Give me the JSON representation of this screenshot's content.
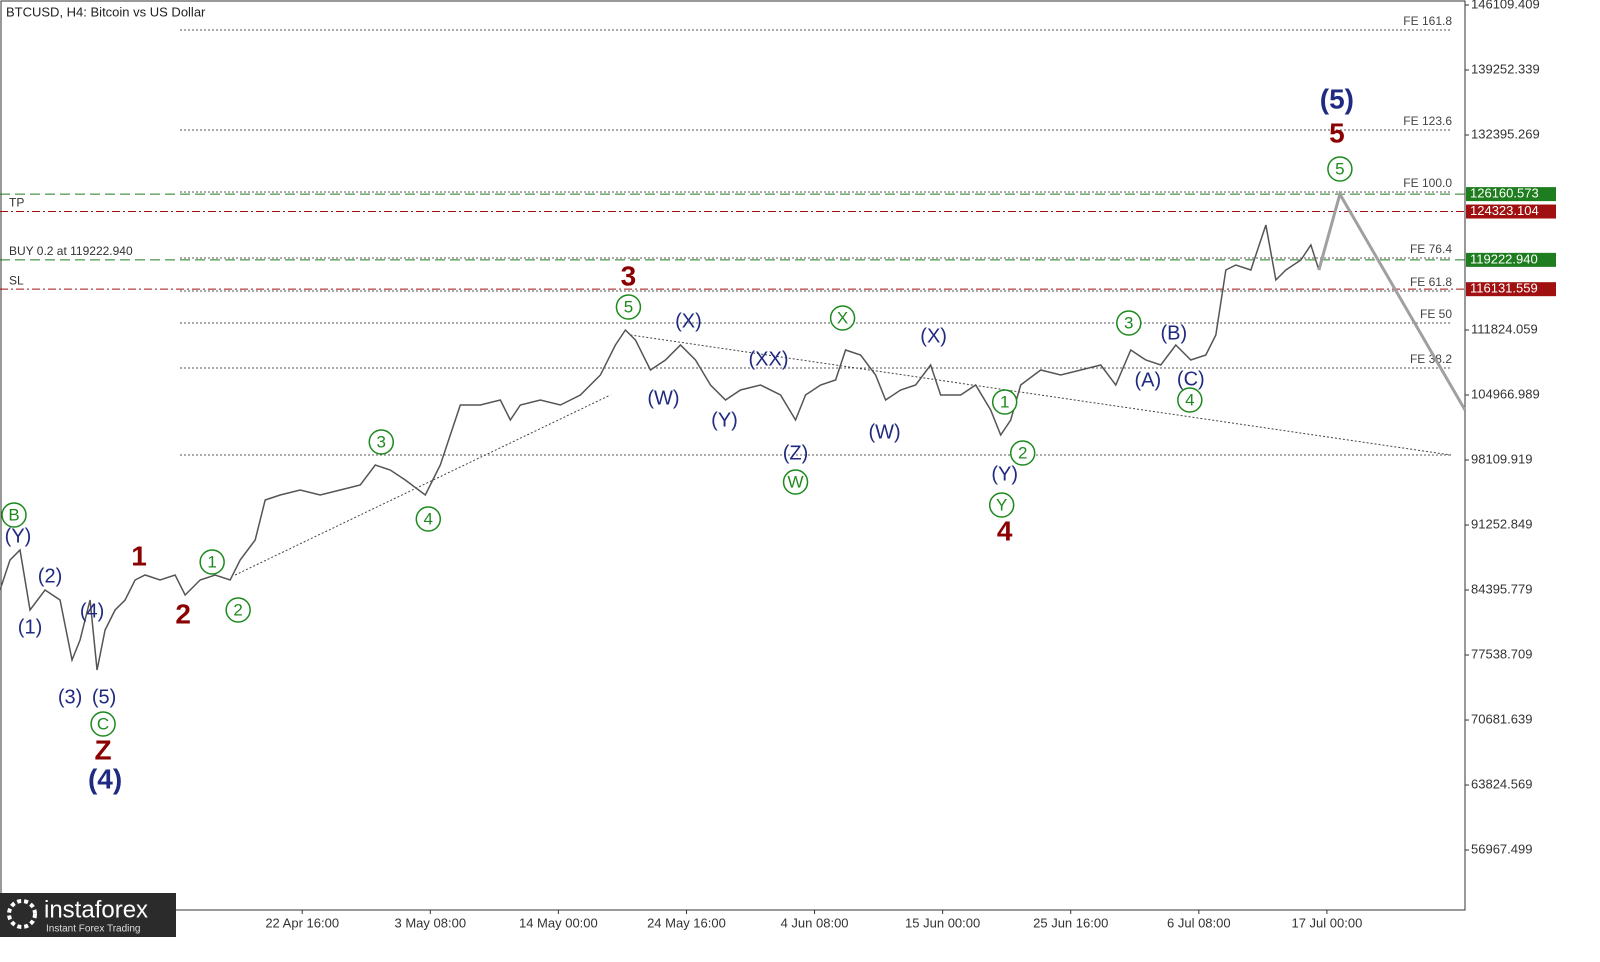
{
  "chart_data": {
    "type": "line",
    "title": "BTCUSD, H4:  Bitcoin vs US Dollar",
    "logo": {
      "name": "instaforex",
      "tagline": "Instant Forex Trading"
    },
    "xlim": [
      0,
      732
    ],
    "ylim": [
      50641,
      146637
    ],
    "yticks": [
      146109.409,
      139252.339,
      132395.269,
      111824.059,
      104966.989,
      98109.919,
      91252.849,
      84395.779,
      77538.709,
      70681.639,
      63824.569,
      56967.499
    ],
    "xticks": [
      {
        "value": 151,
        "label": "22 Apr 16:00"
      },
      {
        "value": 215,
        "label": "3 May 08:00"
      },
      {
        "value": 279,
        "label": "14 May 00:00"
      },
      {
        "value": 343,
        "label": "24 May 16:00"
      },
      {
        "value": 407,
        "label": "4 Jun 08:00"
      },
      {
        "value": 471,
        "label": "15 Jun 00:00"
      },
      {
        "value": 535,
        "label": "25 Jun 16:00"
      },
      {
        "value": 599,
        "label": "6 Jul 08:00"
      },
      {
        "value": 663,
        "label": "17 Jul 00:00"
      }
    ],
    "series": [
      {
        "color": "#555555",
        "x": [
          0,
          5,
          10,
          15,
          22.5,
          30,
          36,
          40,
          45,
          48.5,
          52.5,
          57.5,
          62.5,
          67.5,
          72.5,
          80,
          87.5,
          92.5,
          100,
          107.5,
          115,
          120,
          127.5,
          132.5,
          140,
          150,
          160,
          170,
          180,
          187.5,
          195,
          202.5,
          212.5,
          220,
          227.5,
          230,
          240,
          250,
          255,
          260,
          270,
          280,
          290,
          300,
          307.5,
          312.5,
          317.5,
          325,
          332.5,
          340,
          347.5,
          355,
          362.5,
          370,
          380,
          390,
          397.5,
          402.5,
          410,
          417.5,
          422.5,
          430,
          437.5,
          442.5,
          450,
          457.5,
          465,
          470,
          480,
          487.5,
          495,
          500,
          505,
          510,
          520,
          530,
          540,
          550,
          557.5,
          565,
          572.5,
          580,
          587.5,
          595,
          602.5,
          607.5,
          612.5,
          617.5,
          625,
          632.5,
          637.5,
          642.5,
          650,
          655,
          659
        ],
        "values": [
          84398,
          87563,
          88618,
          82288,
          84398,
          83343,
          77013,
          79123,
          83343,
          75958,
          80178,
          82288,
          83343,
          85453,
          85981,
          85453,
          85981,
          83871,
          85453,
          85981,
          85453,
          87563,
          89673,
          93892,
          94420,
          94947,
          94420,
          94947,
          95475,
          97585,
          97057,
          96002,
          94420,
          97585,
          102331,
          103914,
          103914,
          104441,
          102331,
          103914,
          104441,
          103914,
          104969,
          107079,
          110244,
          111826,
          110771,
          107606,
          108661,
          110244,
          108661,
          106024,
          104441,
          105496,
          106024,
          104969,
          102331,
          104969,
          106024,
          106552,
          109716,
          109189,
          107079,
          104441,
          105496,
          106024,
          108134,
          104969,
          104969,
          106024,
          103386,
          100749,
          102331,
          106024,
          107606,
          107079,
          107606,
          108134,
          106024,
          109716,
          108661,
          108134,
          110244,
          108661,
          109189,
          111299,
          118155,
          118682,
          118155,
          122902,
          117101,
          118155,
          119210,
          120792,
          118155
        ]
      }
    ],
    "forecast": {
      "color": "#a0a0a0",
      "x": [
        659,
        669.5,
        732
      ],
      "values": [
        118155,
        126160.573,
        103386
      ]
    },
    "trendlines": [
      {
        "x": [
          117.5,
          305
        ],
        "values": [
          85981,
          104969
        ]
      },
      {
        "x": [
          315,
          725
        ],
        "values": [
          111299,
          98637
        ]
      }
    ],
    "fib_levels": [
      {
        "label": "FE 161.8",
        "value": 143472
      },
      {
        "label": "FE 123.6",
        "value": 132923
      },
      {
        "label": "FE 100.0",
        "value": 126383
      },
      {
        "label": "FE 76.4",
        "value": 119420
      },
      {
        "label": "FE 61.8",
        "value": 115939
      },
      {
        "label": "FE 50",
        "value": 112562
      },
      {
        "label": "FE 38.2",
        "value": 107815
      },
      {
        "value": 98637
      }
    ],
    "price_lines": [
      {
        "value": 126160.573,
        "price_label": "126160.573",
        "color": "#1e7d1e",
        "style": "dash"
      },
      {
        "label": "TP",
        "value": 124323.104,
        "price_label": "124323.104",
        "color": "#a01010",
        "style": "dashdot"
      },
      {
        "label": "BUY 0.2 at 119222.940",
        "value": 119222.94,
        "price_label": "119222.940",
        "color": "#1e7d1e",
        "style": "dash"
      },
      {
        "label": "SL",
        "value": 116131.559,
        "price_label": "116131.559",
        "color": "#a01010",
        "style": "dashdot"
      }
    ],
    "wave_styles": {
      "circle": "#1e8a1e",
      "navy": "#1f2a80",
      "red": "#8b0000"
    },
    "waves": [
      {
        "text": "B",
        "x": 7,
        "y": 92309,
        "style": "circle"
      },
      {
        "text": "(Y)",
        "x": 9,
        "y": 89989,
        "style": "navy"
      },
      {
        "text": "(2)",
        "x": 25,
        "y": 85770,
        "style": "navy"
      },
      {
        "text": "(1)",
        "x": 15,
        "y": 80389,
        "style": "navy"
      },
      {
        "text": "(4)",
        "x": 46,
        "y": 82077,
        "style": "navy"
      },
      {
        "text": "(3)",
        "x": 35,
        "y": 73005,
        "style": "navy"
      },
      {
        "text": "(5)",
        "x": 52,
        "y": 73005,
        "style": "navy"
      },
      {
        "text": "C",
        "x": 51.5,
        "y": 70262,
        "style": "circle"
      },
      {
        "text": "Z",
        "x": 51.5,
        "y": 67308,
        "style": "red"
      },
      {
        "text": "(4)",
        "x": 52.5,
        "y": 64249,
        "style": "navy",
        "big": true
      },
      {
        "text": "1",
        "x": 69.5,
        "y": 87774,
        "style": "red"
      },
      {
        "text": "2",
        "x": 91.5,
        "y": 81655,
        "style": "red"
      },
      {
        "text": "1",
        "x": 106,
        "y": 87352,
        "style": "circle"
      },
      {
        "text": "2",
        "x": 119,
        "y": 82288,
        "style": "circle"
      },
      {
        "text": "3",
        "x": 190.5,
        "y": 100010,
        "style": "circle"
      },
      {
        "text": "4",
        "x": 214,
        "y": 91887,
        "style": "circle"
      },
      {
        "text": "3",
        "x": 314,
        "y": 117311,
        "style": "red"
      },
      {
        "text": "5",
        "x": 314,
        "y": 114251,
        "style": "circle"
      },
      {
        "text": "(X)",
        "x": 344,
        "y": 112669,
        "style": "navy"
      },
      {
        "text": "(W)",
        "x": 331.5,
        "y": 104546,
        "style": "navy"
      },
      {
        "text": "(Y)",
        "x": 362,
        "y": 102225,
        "style": "navy"
      },
      {
        "text": "(XX)",
        "x": 384,
        "y": 108661,
        "style": "navy"
      },
      {
        "text": "X",
        "x": 421,
        "y": 113091,
        "style": "circle"
      },
      {
        "text": "(Z)",
        "x": 397.5,
        "y": 98744,
        "style": "navy"
      },
      {
        "text": "W",
        "x": 397.5,
        "y": 95791,
        "style": "circle"
      },
      {
        "text": "(X)",
        "x": 466.5,
        "y": 111087,
        "style": "navy"
      },
      {
        "text": "(W)",
        "x": 442,
        "y": 100960,
        "style": "navy"
      },
      {
        "text": "1",
        "x": 502,
        "y": 104230,
        "style": "circle"
      },
      {
        "text": "2",
        "x": 511,
        "y": 98849,
        "style": "circle"
      },
      {
        "text": "(Y)",
        "x": 502,
        "y": 96529,
        "style": "navy"
      },
      {
        "text": "Y",
        "x": 500.5,
        "y": 93364,
        "style": "circle"
      },
      {
        "text": "4",
        "x": 502,
        "y": 90410,
        "style": "red"
      },
      {
        "text": "3",
        "x": 564,
        "y": 112563,
        "style": "circle"
      },
      {
        "text": "(B)",
        "x": 586.5,
        "y": 111404,
        "style": "navy"
      },
      {
        "text": "(A)",
        "x": 573.5,
        "y": 106446,
        "style": "navy"
      },
      {
        "text": "(C)",
        "x": 595,
        "y": 106552,
        "style": "navy"
      },
      {
        "text": "4",
        "x": 594.5,
        "y": 104441,
        "style": "circle"
      },
      {
        "text": "5",
        "x": 669.5,
        "y": 128809,
        "style": "circle"
      },
      {
        "text": "5",
        "x": 668,
        "y": 132396,
        "style": "red"
      },
      {
        "text": "(5)",
        "x": 668,
        "y": 135982,
        "style": "navy",
        "big": true
      }
    ]
  }
}
